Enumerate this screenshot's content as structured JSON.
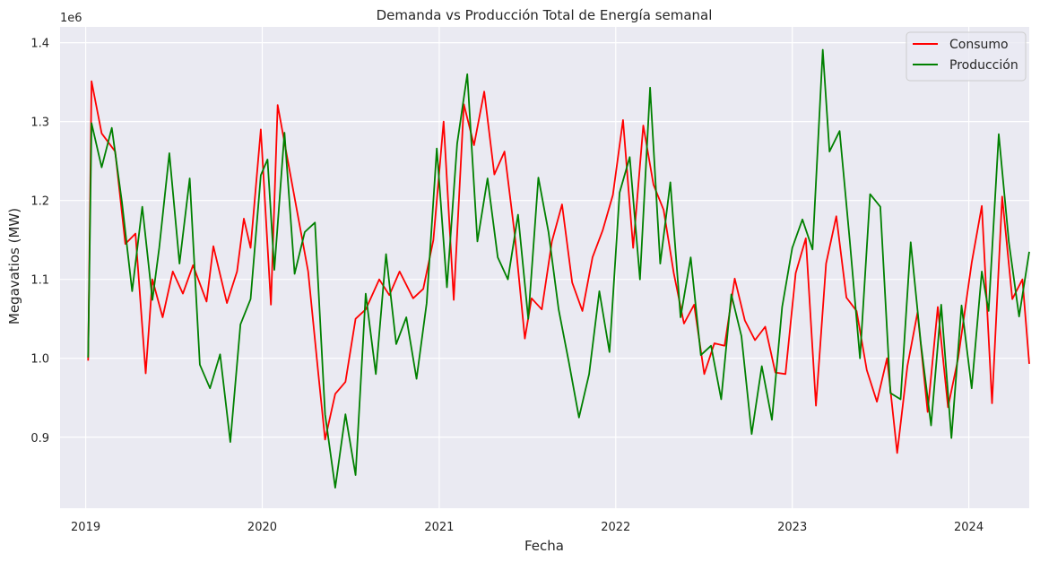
{
  "chart_data": {
    "type": "line",
    "title": "Demanda vs Producción Total de Energía semanal",
    "xlabel": "Fecha",
    "ylabel": "Megavatios (MW)",
    "y_offset_label": "1e6",
    "x_ticks": [
      "2019",
      "2020",
      "2021",
      "2022",
      "2023",
      "2024"
    ],
    "y_ticks": [
      "0.9",
      "1.0",
      "1.1",
      "1.2",
      "1.3",
      "1.4"
    ],
    "y_tick_values": [
      900000,
      1000000,
      1100000,
      1200000,
      1300000,
      1400000
    ],
    "ylim": [
      810000,
      1420000
    ],
    "xlim": [
      "2018-11-09",
      "2024-05-05"
    ],
    "grid": true,
    "legend_position": "top-right",
    "colors": {
      "background": "#eaeaf2",
      "grid": "#ffffff",
      "consumo": "#ff0000",
      "produccion": "#008000"
    },
    "series": [
      {
        "name": "Consumo",
        "points": [
          [
            "2019-01-06",
            997000
          ],
          [
            "2019-01-13",
            1351000
          ],
          [
            "2019-02-03",
            1285000
          ],
          [
            "2019-03-03",
            1262000
          ],
          [
            "2019-03-24",
            1145000
          ],
          [
            "2019-04-14",
            1158000
          ],
          [
            "2019-05-05",
            981000
          ],
          [
            "2019-05-19",
            1100000
          ],
          [
            "2019-06-09",
            1052000
          ],
          [
            "2019-06-30",
            1110000
          ],
          [
            "2019-07-21",
            1082000
          ],
          [
            "2019-08-11",
            1118000
          ],
          [
            "2019-09-08",
            1072000
          ],
          [
            "2019-09-22",
            1142000
          ],
          [
            "2019-10-20",
            1070000
          ],
          [
            "2019-11-10",
            1110000
          ],
          [
            "2019-11-24",
            1177000
          ],
          [
            "2019-12-08",
            1140000
          ],
          [
            "2019-12-29",
            1290000
          ],
          [
            "2020-01-19",
            1068000
          ],
          [
            "2020-02-02",
            1321000
          ],
          [
            "2020-02-23",
            1250000
          ],
          [
            "2020-03-15",
            1180000
          ],
          [
            "2020-04-05",
            1110000
          ],
          [
            "2020-04-26",
            980000
          ],
          [
            "2020-05-10",
            897000
          ],
          [
            "2020-05-31",
            955000
          ],
          [
            "2020-06-21",
            970000
          ],
          [
            "2020-07-12",
            1050000
          ],
          [
            "2020-08-02",
            1062000
          ],
          [
            "2020-08-30",
            1100000
          ],
          [
            "2020-09-20",
            1080000
          ],
          [
            "2020-10-11",
            1110000
          ],
          [
            "2020-11-08",
            1076000
          ],
          [
            "2020-11-29",
            1088000
          ],
          [
            "2020-12-20",
            1150000
          ],
          [
            "2021-01-10",
            1300000
          ],
          [
            "2021-01-31",
            1074000
          ],
          [
            "2021-02-21",
            1322000
          ],
          [
            "2021-03-14",
            1270000
          ],
          [
            "2021-04-04",
            1338000
          ],
          [
            "2021-04-25",
            1233000
          ],
          [
            "2021-05-16",
            1262000
          ],
          [
            "2021-06-06",
            1157000
          ],
          [
            "2021-06-27",
            1025000
          ],
          [
            "2021-07-11",
            1076000
          ],
          [
            "2021-08-01",
            1062000
          ],
          [
            "2021-08-22",
            1148000
          ],
          [
            "2021-09-12",
            1195000
          ],
          [
            "2021-10-03",
            1096000
          ],
          [
            "2021-10-24",
            1060000
          ],
          [
            "2021-11-14",
            1128000
          ],
          [
            "2021-12-05",
            1162000
          ],
          [
            "2021-12-26",
            1207000
          ],
          [
            "2022-01-16",
            1302000
          ],
          [
            "2022-02-06",
            1140000
          ],
          [
            "2022-02-27",
            1295000
          ],
          [
            "2022-03-20",
            1220000
          ],
          [
            "2022-04-10",
            1188000
          ],
          [
            "2022-05-01",
            1108000
          ],
          [
            "2022-05-22",
            1044000
          ],
          [
            "2022-06-12",
            1068000
          ],
          [
            "2022-07-03",
            980000
          ],
          [
            "2022-07-24",
            1019000
          ],
          [
            "2022-08-14",
            1016000
          ],
          [
            "2022-09-04",
            1101000
          ],
          [
            "2022-09-25",
            1048000
          ],
          [
            "2022-10-16",
            1023000
          ],
          [
            "2022-11-06",
            1040000
          ],
          [
            "2022-11-27",
            982000
          ],
          [
            "2022-12-18",
            980000
          ],
          [
            "2023-01-08",
            1108000
          ],
          [
            "2023-01-29",
            1152000
          ],
          [
            "2023-02-19",
            940000
          ],
          [
            "2023-03-12",
            1120000
          ],
          [
            "2023-04-02",
            1180000
          ],
          [
            "2023-04-23",
            1077000
          ],
          [
            "2023-05-14",
            1060000
          ],
          [
            "2023-06-04",
            985000
          ],
          [
            "2023-06-25",
            945000
          ],
          [
            "2023-07-16",
            1000000
          ],
          [
            "2023-08-06",
            880000
          ],
          [
            "2023-08-27",
            990000
          ],
          [
            "2023-09-17",
            1058000
          ],
          [
            "2023-10-08",
            932000
          ],
          [
            "2023-10-29",
            1065000
          ],
          [
            "2023-11-19",
            938000
          ],
          [
            "2023-12-10",
            1000000
          ],
          [
            "2024-01-07",
            1121000
          ],
          [
            "2024-01-28",
            1193000
          ],
          [
            "2024-02-18",
            943000
          ],
          [
            "2024-03-10",
            1205000
          ],
          [
            "2024-03-31",
            1075000
          ],
          [
            "2024-04-21",
            1100000
          ],
          [
            "2024-05-05",
            993000
          ]
        ]
      },
      {
        "name": "Producción",
        "points": [
          [
            "2019-01-06",
            1001000
          ],
          [
            "2019-01-13",
            1298000
          ],
          [
            "2019-02-03",
            1242000
          ],
          [
            "2019-02-24",
            1292000
          ],
          [
            "2019-03-17",
            1198000
          ],
          [
            "2019-04-07",
            1085000
          ],
          [
            "2019-04-28",
            1192000
          ],
          [
            "2019-05-19",
            1074000
          ],
          [
            "2019-06-02",
            1140000
          ],
          [
            "2019-06-23",
            1260000
          ],
          [
            "2019-07-14",
            1120000
          ],
          [
            "2019-08-04",
            1228000
          ],
          [
            "2019-08-25",
            992000
          ],
          [
            "2019-09-15",
            962000
          ],
          [
            "2019-10-06",
            1005000
          ],
          [
            "2019-10-27",
            894000
          ],
          [
            "2019-11-17",
            1043000
          ],
          [
            "2019-12-08",
            1075000
          ],
          [
            "2019-12-29",
            1232000
          ],
          [
            "2020-01-12",
            1252000
          ],
          [
            "2020-01-26",
            1112000
          ],
          [
            "2020-02-16",
            1286000
          ],
          [
            "2020-03-08",
            1107000
          ],
          [
            "2020-03-29",
            1160000
          ],
          [
            "2020-04-19",
            1172000
          ],
          [
            "2020-05-10",
            929000
          ],
          [
            "2020-05-31",
            836000
          ],
          [
            "2020-06-21",
            929000
          ],
          [
            "2020-07-12",
            852000
          ],
          [
            "2020-08-02",
            1082000
          ],
          [
            "2020-08-23",
            980000
          ],
          [
            "2020-09-13",
            1132000
          ],
          [
            "2020-10-04",
            1018000
          ],
          [
            "2020-10-25",
            1052000
          ],
          [
            "2020-11-15",
            974000
          ],
          [
            "2020-12-06",
            1070000
          ],
          [
            "2020-12-27",
            1266000
          ],
          [
            "2021-01-17",
            1090000
          ],
          [
            "2021-02-07",
            1272000
          ],
          [
            "2021-02-28",
            1360000
          ],
          [
            "2021-03-21",
            1148000
          ],
          [
            "2021-04-11",
            1228000
          ],
          [
            "2021-05-02",
            1128000
          ],
          [
            "2021-05-23",
            1100000
          ],
          [
            "2021-06-13",
            1182000
          ],
          [
            "2021-07-04",
            1050000
          ],
          [
            "2021-07-25",
            1229000
          ],
          [
            "2021-08-15",
            1160000
          ],
          [
            "2021-09-05",
            1062000
          ],
          [
            "2021-09-26",
            995000
          ],
          [
            "2021-10-17",
            925000
          ],
          [
            "2021-11-07",
            980000
          ],
          [
            "2021-11-28",
            1085000
          ],
          [
            "2021-12-19",
            1008000
          ],
          [
            "2022-01-09",
            1210000
          ],
          [
            "2022-01-30",
            1255000
          ],
          [
            "2022-02-20",
            1100000
          ],
          [
            "2022-03-13",
            1343000
          ],
          [
            "2022-04-03",
            1120000
          ],
          [
            "2022-04-24",
            1223000
          ],
          [
            "2022-05-15",
            1052000
          ],
          [
            "2022-06-05",
            1128000
          ],
          [
            "2022-06-26",
            1004000
          ],
          [
            "2022-07-17",
            1016000
          ],
          [
            "2022-08-07",
            948000
          ],
          [
            "2022-08-28",
            1081000
          ],
          [
            "2022-09-18",
            1028000
          ],
          [
            "2022-10-09",
            904000
          ],
          [
            "2022-10-30",
            990000
          ],
          [
            "2022-11-20",
            922000
          ],
          [
            "2022-12-11",
            1065000
          ],
          [
            "2023-01-01",
            1140000
          ],
          [
            "2023-01-22",
            1176000
          ],
          [
            "2023-02-12",
            1138000
          ],
          [
            "2023-03-05",
            1391000
          ],
          [
            "2023-03-19",
            1262000
          ],
          [
            "2023-04-09",
            1288000
          ],
          [
            "2023-04-30",
            1148000
          ],
          [
            "2023-05-21",
            1000000
          ],
          [
            "2023-06-11",
            1208000
          ],
          [
            "2023-07-02",
            1192000
          ],
          [
            "2023-07-23",
            956000
          ],
          [
            "2023-08-13",
            948000
          ],
          [
            "2023-09-03",
            1147000
          ],
          [
            "2023-09-24",
            1018000
          ],
          [
            "2023-10-15",
            915000
          ],
          [
            "2023-11-05",
            1068000
          ],
          [
            "2023-11-26",
            899000
          ],
          [
            "2023-12-17",
            1067000
          ],
          [
            "2024-01-07",
            962000
          ],
          [
            "2024-01-28",
            1110000
          ],
          [
            "2024-02-11",
            1060000
          ],
          [
            "2024-03-03",
            1284000
          ],
          [
            "2024-03-24",
            1147000
          ],
          [
            "2024-04-14",
            1053000
          ],
          [
            "2024-05-05",
            1135000
          ]
        ]
      }
    ]
  }
}
